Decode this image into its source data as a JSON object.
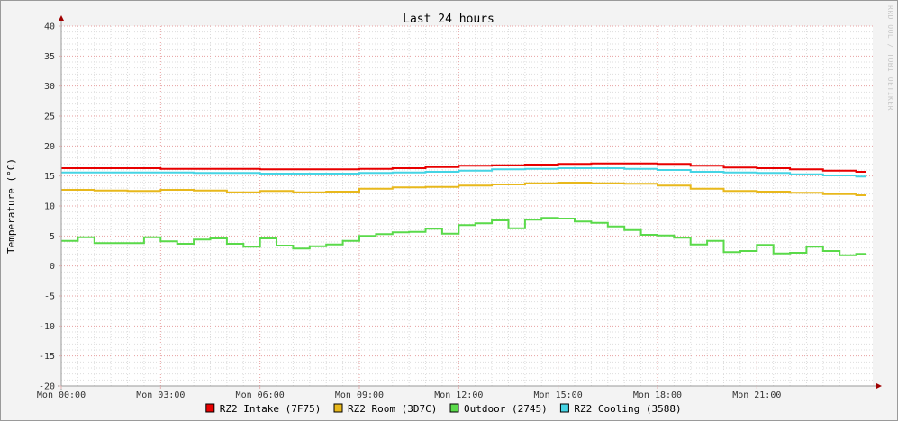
{
  "chart_data": {
    "type": "line",
    "title": "Last 24 hours",
    "ylabel": "Temperature (°C)",
    "xlabel": "",
    "ylim": [
      -20,
      40
    ],
    "y_ticks": [
      40,
      35,
      30,
      25,
      20,
      15,
      10,
      5,
      0,
      -5,
      -10,
      -15,
      -20
    ],
    "x_range_hours": [
      0,
      24.5
    ],
    "x_ticks": [
      {
        "hour": 0,
        "label": "Mon 00:00"
      },
      {
        "hour": 3,
        "label": "Mon 03:00"
      },
      {
        "hour": 6,
        "label": "Mon 06:00"
      },
      {
        "hour": 9,
        "label": "Mon 09:00"
      },
      {
        "hour": 12,
        "label": "Mon 12:00"
      },
      {
        "hour": 15,
        "label": "Mon 15:00"
      },
      {
        "hour": 18,
        "label": "Mon 18:00"
      },
      {
        "hour": 21,
        "label": "Mon 21:00"
      }
    ],
    "grid": true,
    "legend_position": "bottom",
    "watermark": "RRDTOOL / TOBI OETIKER",
    "series": [
      {
        "name": "RZ2 Intake (7F75)",
        "color": "#e80000",
        "x": [
          0,
          1,
          2,
          3,
          4,
          5,
          6,
          7,
          8,
          9,
          10,
          11,
          12,
          13,
          14,
          15,
          16,
          17,
          18,
          19,
          20,
          21,
          22,
          23,
          24
        ],
        "values": [
          16.3,
          16.3,
          16.3,
          16.2,
          16.2,
          16.2,
          16.1,
          16.1,
          16.1,
          16.2,
          16.3,
          16.5,
          16.7,
          16.8,
          16.9,
          17.0,
          17.1,
          17.1,
          17.0,
          16.7,
          16.4,
          16.3,
          16.1,
          15.9,
          15.7
        ]
      },
      {
        "name": "RZ2 Room (3D7C)",
        "color": "#e8b81c",
        "x": [
          0,
          1,
          2,
          3,
          4,
          5,
          6,
          7,
          8,
          9,
          10,
          11,
          12,
          13,
          14,
          15,
          16,
          17,
          18,
          19,
          20,
          21,
          22,
          23,
          24
        ],
        "values": [
          12.7,
          12.6,
          12.5,
          12.7,
          12.6,
          12.3,
          12.5,
          12.3,
          12.4,
          12.9,
          13.1,
          13.2,
          13.4,
          13.6,
          13.8,
          13.9,
          13.8,
          13.7,
          13.4,
          12.9,
          12.5,
          12.4,
          12.2,
          12.0,
          11.8
        ]
      },
      {
        "name": "Outdoor (2745)",
        "color": "#5ada4a",
        "x": [
          0,
          0.5,
          1,
          2,
          2.5,
          3,
          3.5,
          4,
          4.5,
          5,
          5.5,
          6,
          6.5,
          7,
          7.5,
          8,
          8.5,
          9,
          9.5,
          10,
          10.5,
          11,
          11.5,
          12,
          12.5,
          13,
          13.5,
          14,
          14.5,
          15,
          15.5,
          16,
          16.5,
          17,
          17.5,
          18,
          18.5,
          19,
          19.5,
          20,
          20.5,
          21,
          21.5,
          22,
          22.5,
          23,
          23.5,
          24
        ],
        "values": [
          4.2,
          4.8,
          3.8,
          3.8,
          4.8,
          4.1,
          3.7,
          4.4,
          4.6,
          3.7,
          3.2,
          4.6,
          3.4,
          2.9,
          3.3,
          3.6,
          4.2,
          5.0,
          5.3,
          5.6,
          5.7,
          6.2,
          5.4,
          6.8,
          7.1,
          7.6,
          6.3,
          7.7,
          8.0,
          7.9,
          7.4,
          7.2,
          6.6,
          6.0,
          5.2,
          5.1,
          4.7,
          3.6,
          4.2,
          2.3,
          2.5,
          3.5,
          2.1,
          2.2,
          3.2,
          2.5,
          1.8,
          2.0
        ]
      },
      {
        "name": "RZ2 Cooling (3588)",
        "color": "#46d4e4",
        "x": [
          0,
          1,
          2,
          3,
          4,
          5,
          6,
          7,
          8,
          9,
          10,
          11,
          12,
          13,
          14,
          15,
          16,
          17,
          18,
          19,
          20,
          21,
          22,
          23,
          24
        ],
        "values": [
          15.6,
          15.6,
          15.6,
          15.6,
          15.5,
          15.5,
          15.4,
          15.4,
          15.4,
          15.5,
          15.6,
          15.7,
          15.9,
          16.1,
          16.2,
          16.3,
          16.3,
          16.2,
          16.0,
          15.7,
          15.6,
          15.5,
          15.3,
          15.1,
          14.9
        ]
      }
    ]
  }
}
